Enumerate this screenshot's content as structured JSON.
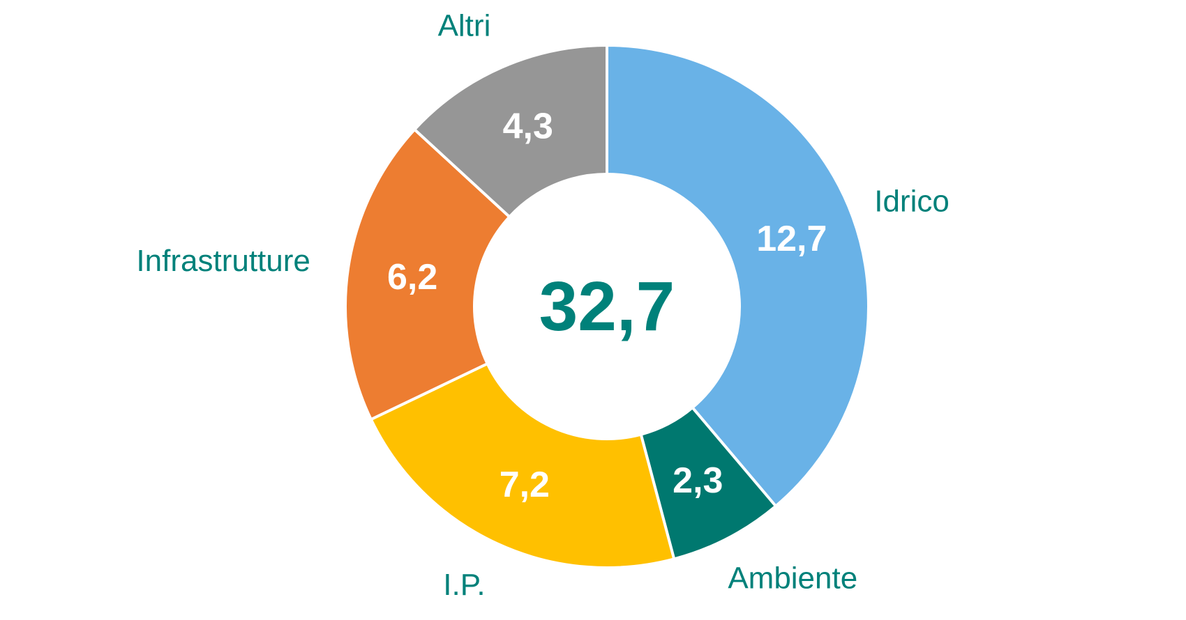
{
  "chart_data": {
    "type": "pie",
    "subtype": "donut",
    "title": "",
    "total_label": "32,7",
    "start": "12 o'clock",
    "direction": "clockwise",
    "legend": "none",
    "label_color": "#00817A",
    "value_label_color": "#FFFFFF",
    "separator_color": "#FFFFFF",
    "slices": [
      {
        "category": "Idrico",
        "value": 12.7,
        "value_label": "12,7",
        "color": "#69B2E7"
      },
      {
        "category": "Ambiente",
        "value": 2.3,
        "value_label": "2,3",
        "color": "#00786F"
      },
      {
        "category": "I.P.",
        "value": 7.2,
        "value_label": "7,2",
        "color": "#FFC000"
      },
      {
        "category": "Infrastrutture",
        "value": 6.2,
        "value_label": "6,2",
        "color": "#ED7D31"
      },
      {
        "category": "Altri",
        "value": 4.3,
        "value_label": "4,3",
        "color": "#969696"
      }
    ]
  }
}
